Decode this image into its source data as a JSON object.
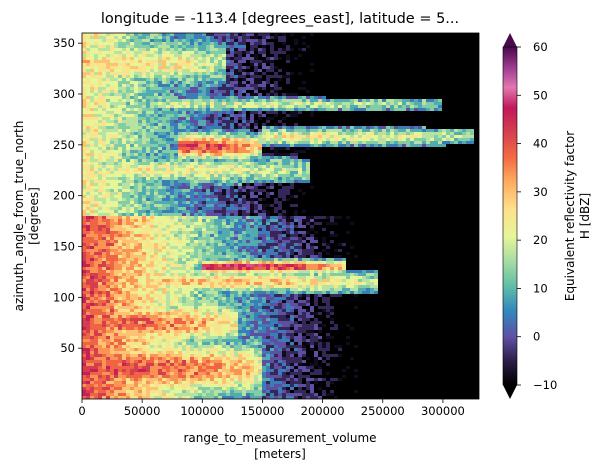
{
  "chart_data": {
    "type": "heatmap",
    "title": "longitude = -113.4 [degrees_east], latitude = 5...",
    "xlabel": "range_to_measurement_volume",
    "xlabel_units": "[meters]",
    "ylabel": "azimuth_angle_from_true_north",
    "ylabel_units": "[degrees]",
    "xlim": [
      0,
      330000
    ],
    "ylim": [
      0,
      360
    ],
    "x_ticks": [
      0,
      50000,
      100000,
      150000,
      200000,
      250000,
      300000
    ],
    "x_tick_labels": [
      "0",
      "50000",
      "100000",
      "150000",
      "200000",
      "250000",
      "300000"
    ],
    "y_ticks": [
      50,
      100,
      150,
      200,
      250,
      300,
      350
    ],
    "y_tick_labels": [
      "50",
      "100",
      "150",
      "200",
      "250",
      "300",
      "350"
    ],
    "colorbar": {
      "label_line1": "Equivalent reflectivity factor",
      "label_line2": "H [dBZ]",
      "vmin": -10,
      "vmax": 60,
      "ticks": [
        -10,
        0,
        10,
        20,
        30,
        40,
        50,
        60
      ],
      "tick_labels": [
        "−10",
        "0",
        "10",
        "20",
        "30",
        "40",
        "50",
        "60"
      ],
      "extend": "both",
      "colormap": "Spectral_r"
    },
    "background_color": "#000000",
    "echo_features": [
      {
        "azimuth": 30,
        "range_start": 0,
        "range_end": 150000,
        "dbz": 38,
        "spread": 25
      },
      {
        "azimuth": 75,
        "range_start": 0,
        "range_end": 130000,
        "dbz": 36,
        "spread": 20
      },
      {
        "azimuth": 115,
        "range_start": 60000,
        "range_end": 245000,
        "dbz": 28,
        "spread": 10
      },
      {
        "azimuth": 130,
        "range_start": 100000,
        "range_end": 220000,
        "dbz": 45,
        "spread": 6
      },
      {
        "azimuth": 225,
        "range_start": 30000,
        "range_end": 190000,
        "dbz": 22,
        "spread": 12
      },
      {
        "azimuth": 248,
        "range_start": 80000,
        "range_end": 150000,
        "dbz": 40,
        "spread": 12
      },
      {
        "azimuth": 258,
        "range_start": 150000,
        "range_end": 325000,
        "dbz": 22,
        "spread": 8
      },
      {
        "azimuth": 290,
        "range_start": 60000,
        "range_end": 300000,
        "dbz": 18,
        "spread": 6
      },
      {
        "azimuth": 330,
        "range_start": 0,
        "range_end": 120000,
        "dbz": 25,
        "spread": 20
      }
    ]
  }
}
